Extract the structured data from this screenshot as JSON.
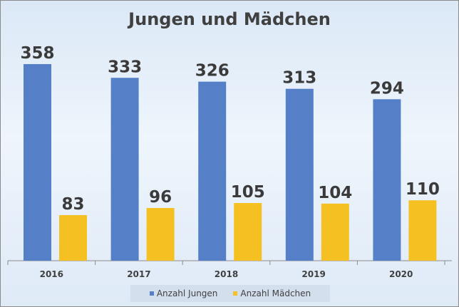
{
  "chart_data": {
    "type": "bar",
    "title": "Jungen und Mädchen",
    "categories": [
      "2016",
      "2017",
      "2018",
      "2019",
      "2020"
    ],
    "series": [
      {
        "name": "Anzahl Jungen",
        "values": [
          358,
          333,
          326,
          313,
          294
        ],
        "color": "#5580c8"
      },
      {
        "name": "Anzahl Mädchen",
        "values": [
          83,
          96,
          105,
          104,
          110
        ],
        "color": "#f5c122"
      }
    ],
    "xlabel": "",
    "ylabel": "",
    "ylim": [
      0,
      400
    ],
    "grid": false,
    "legend": "bottom"
  }
}
